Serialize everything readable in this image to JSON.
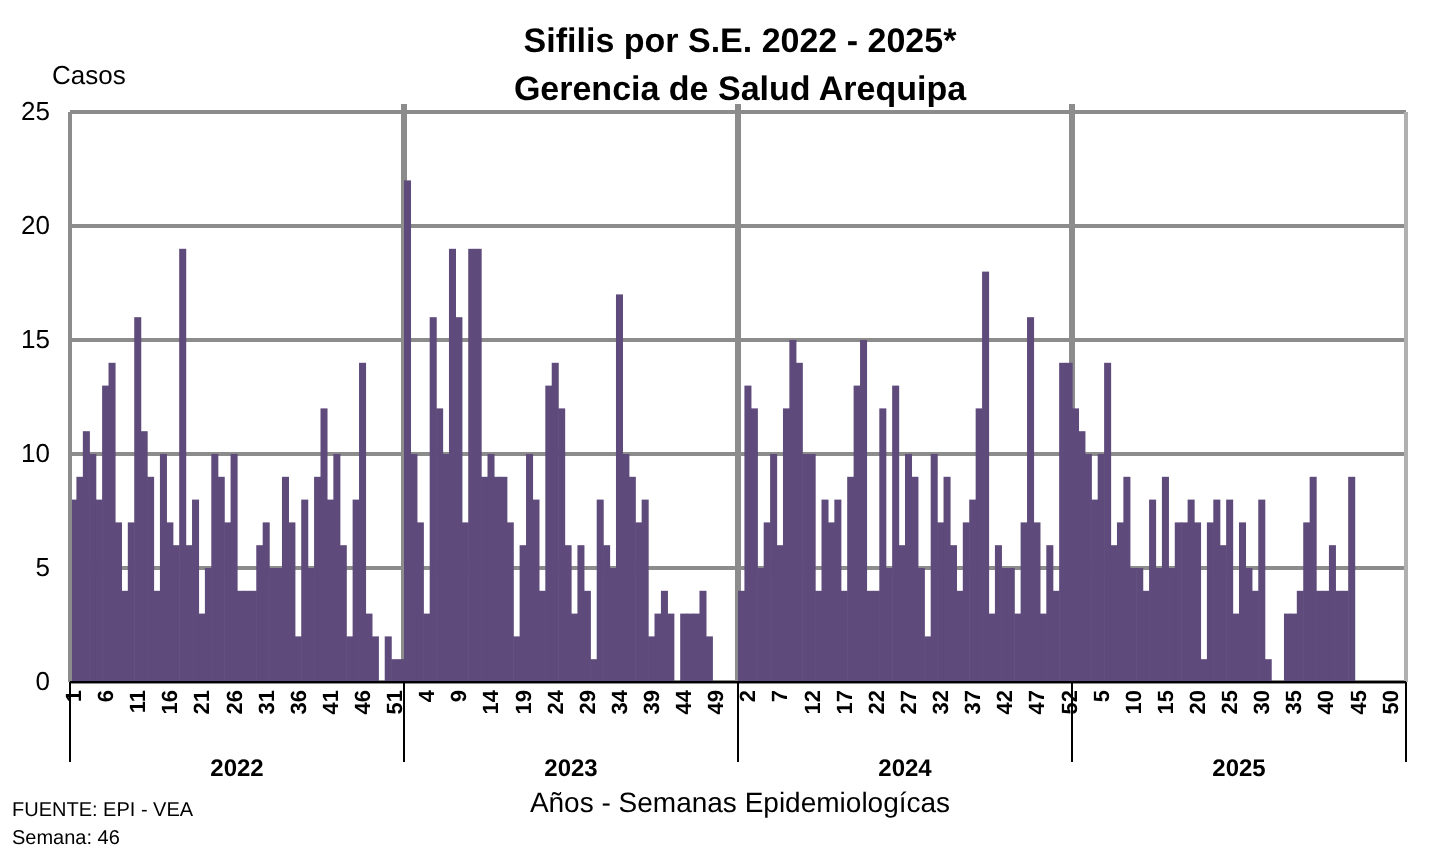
{
  "chart_data": {
    "type": "bar",
    "title": "Sifilis por S.E. 2022 - 2025*",
    "subtitle": "Gerencia de Salud Arequipa",
    "ylabel": "Casos",
    "xlabel": "Años - Semanas Epidemiologícas",
    "categories": [
      "1",
      null,
      null,
      null,
      null,
      "6",
      null,
      null,
      null,
      null,
      "11",
      null,
      null,
      null,
      null,
      "16",
      null,
      null,
      null,
      null,
      "21",
      null,
      null,
      null,
      null,
      "26",
      null,
      null,
      null,
      null,
      "31",
      null,
      null,
      null,
      null,
      "36",
      null,
      null,
      null,
      null,
      "41",
      null,
      null,
      null,
      null,
      "46",
      null,
      null,
      null,
      null,
      "51",
      null,
      null,
      null,
      null,
      "4",
      null,
      null,
      null,
      null,
      "9",
      null,
      null,
      null,
      null,
      "14",
      null,
      null,
      null,
      null,
      "19",
      null,
      null,
      null,
      null,
      "24",
      null,
      null,
      null,
      null,
      "29",
      null,
      null,
      null,
      null,
      "34",
      null,
      null,
      null,
      null,
      "39",
      null,
      null,
      null,
      null,
      "44",
      null,
      null,
      null,
      null,
      "49",
      null,
      null,
      null,
      null,
      "2",
      null,
      null,
      null,
      null,
      "7",
      null,
      null,
      null,
      null,
      "12",
      null,
      null,
      null,
      null,
      "17",
      null,
      null,
      null,
      null,
      "22",
      null,
      null,
      null,
      null,
      "27",
      null,
      null,
      null,
      null,
      "32",
      null,
      null,
      null,
      null,
      "37",
      null,
      null,
      null,
      null,
      "42",
      null,
      null,
      null,
      null,
      "47",
      null,
      null,
      null,
      null,
      "52",
      null,
      null,
      null,
      null,
      "5",
      null,
      null,
      null,
      null,
      "10",
      null,
      null,
      null,
      null,
      "15",
      null,
      null,
      null,
      null,
      "20",
      null,
      null,
      null,
      null,
      "25",
      null,
      null,
      null,
      null,
      "30",
      null,
      null,
      null,
      null,
      "35",
      null,
      null,
      null,
      null,
      "40",
      null,
      null,
      null,
      null,
      "45",
      null,
      null,
      null,
      null,
      "50",
      null,
      null
    ],
    "values": [
      8,
      9,
      11,
      10,
      8,
      13,
      14,
      7,
      4,
      7,
      16,
      11,
      9,
      4,
      10,
      7,
      6,
      19,
      6,
      8,
      3,
      5,
      10,
      9,
      7,
      10,
      4,
      4,
      4,
      6,
      7,
      5,
      5,
      9,
      7,
      2,
      8,
      5,
      9,
      12,
      8,
      10,
      6,
      2,
      8,
      14,
      3,
      2,
      0,
      2,
      1,
      1,
      22,
      10,
      7,
      3,
      16,
      12,
      10,
      19,
      16,
      7,
      19,
      19,
      9,
      10,
      9,
      9,
      7,
      2,
      6,
      10,
      8,
      4,
      13,
      14,
      12,
      6,
      3,
      6,
      4,
      1,
      8,
      6,
      5,
      17,
      10,
      9,
      7,
      8,
      2,
      3,
      4,
      3,
      0,
      3,
      3,
      3,
      4,
      2,
      0,
      0,
      0,
      0,
      4,
      13,
      12,
      5,
      7,
      10,
      6,
      12,
      15,
      14,
      10,
      10,
      4,
      8,
      7,
      8,
      4,
      9,
      13,
      15,
      4,
      4,
      12,
      5,
      13,
      6,
      10,
      9,
      5,
      2,
      10,
      7,
      9,
      6,
      4,
      7,
      8,
      12,
      18,
      3,
      6,
      5,
      5,
      3,
      7,
      16,
      7,
      3,
      6,
      4,
      14,
      14,
      12,
      11,
      10,
      8,
      10,
      14,
      6,
      7,
      9,
      5,
      5,
      4,
      8,
      5,
      9,
      5,
      7,
      7,
      8,
      7,
      1,
      7,
      8,
      6,
      8,
      3,
      7,
      5,
      4,
      8,
      1,
      0,
      0,
      3,
      3,
      4,
      7,
      9,
      4,
      4,
      6,
      4,
      4,
      9,
      null,
      null,
      null,
      null,
      null,
      null,
      null,
      null
    ],
    "color": "#5e4a7b",
    "ylim": [
      0,
      25
    ],
    "yticks": [
      0,
      5,
      10,
      15,
      20,
      25
    ],
    "grid": "y",
    "annotations": [
      "2022",
      "2023",
      "2024",
      "2025",
      "FUENTE: EPI - VEA",
      "Semana: 46"
    ]
  }
}
